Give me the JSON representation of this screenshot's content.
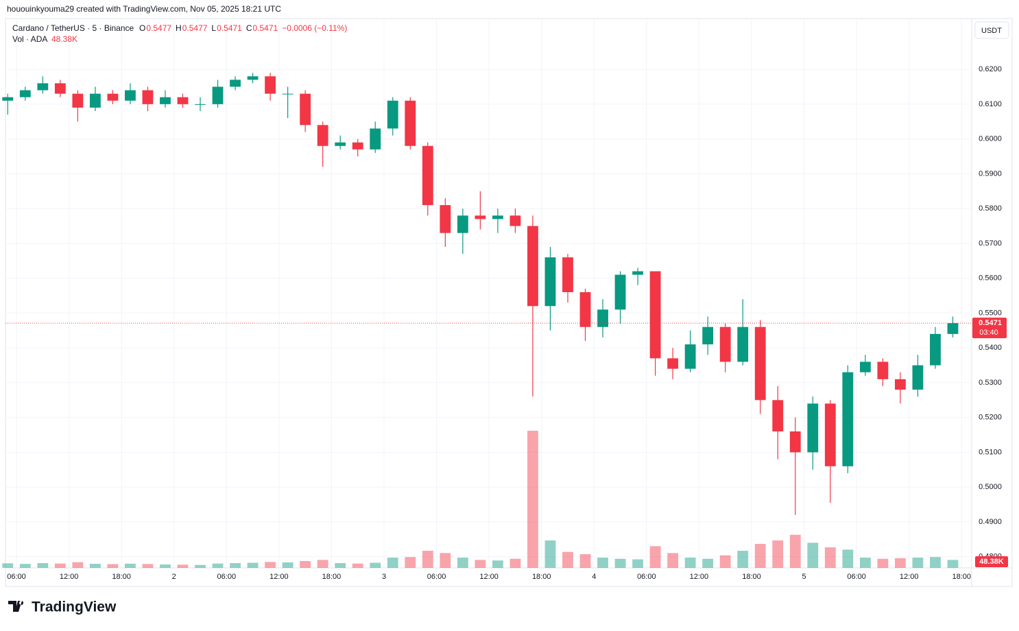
{
  "chart_data": {
    "type": "candlestick",
    "caption": "hououinkyouma29 created with TradingView.com, Nov 05, 2025 18:21 UTC",
    "title": "Cardano / TetherUS · 5 · Binance",
    "ohlc_legend": [
      {
        "label": "O",
        "value": 0.5477
      },
      {
        "label": "H",
        "value": 0.5477
      },
      {
        "label": "L",
        "value": 0.5471
      },
      {
        "label": "C",
        "value": 0.5471
      }
    ],
    "change": "−0.0006 (−0.11%)",
    "volume_title": "Vol · ADA",
    "volume_label": "48.38K",
    "currency": "USDT",
    "last_price": 0.5471,
    "countdown": "03:40",
    "brand": "TradingView",
    "up_color": "#089981",
    "down_color": "#f23645",
    "grid": true,
    "xlim": [
      4.9,
      115
    ],
    "xticks": [
      {
        "value": 6,
        "label": "06:00"
      },
      {
        "value": 12,
        "label": "12:00"
      },
      {
        "value": 18,
        "label": "18:00"
      },
      {
        "value": 24,
        "label": "2"
      },
      {
        "value": 30,
        "label": "06:00"
      },
      {
        "value": 36,
        "label": "12:00"
      },
      {
        "value": 42,
        "label": "18:00"
      },
      {
        "value": 48,
        "label": "3"
      },
      {
        "value": 54,
        "label": "06:00"
      },
      {
        "value": 60,
        "label": "12:00"
      },
      {
        "value": 66,
        "label": "18:00"
      },
      {
        "value": 72,
        "label": "4"
      },
      {
        "value": 78,
        "label": "06:00"
      },
      {
        "value": 84,
        "label": "12:00"
      },
      {
        "value": 90,
        "label": "18:00"
      },
      {
        "value": 96,
        "label": "5"
      },
      {
        "value": 102,
        "label": "06:00"
      },
      {
        "value": 108,
        "label": "12:00"
      },
      {
        "value": 114,
        "label": "18:00"
      }
    ],
    "ylim": [
      0.4768,
      0.6344
    ],
    "yticks": [
      {
        "value": 0.48,
        "label": "0.4800"
      },
      {
        "value": 0.49,
        "label": "0.4900"
      },
      {
        "value": 0.5,
        "label": "0.5000"
      },
      {
        "value": 0.51,
        "label": "0.5100"
      },
      {
        "value": 0.52,
        "label": "0.5200"
      },
      {
        "value": 0.53,
        "label": "0.5300"
      },
      {
        "value": 0.54,
        "label": "0.5400"
      },
      {
        "value": 0.55,
        "label": "0.5500"
      },
      {
        "value": 0.56,
        "label": "0.5600"
      },
      {
        "value": 0.57,
        "label": "0.5700"
      },
      {
        "value": 0.58,
        "label": "0.5800"
      },
      {
        "value": 0.59,
        "label": "0.5900"
      },
      {
        "value": 0.6,
        "label": "0.6000"
      },
      {
        "value": 0.61,
        "label": "0.6100"
      },
      {
        "value": 0.62,
        "label": "0.6200"
      }
    ],
    "x": [
      5,
      7,
      9,
      11,
      13,
      15,
      17,
      19,
      21,
      23,
      25,
      27,
      29,
      31,
      33,
      35,
      37,
      39,
      41,
      43,
      45,
      47,
      49,
      51,
      53,
      55,
      57,
      59,
      61,
      63,
      65,
      67,
      69,
      71,
      73,
      75,
      77,
      79,
      81,
      83,
      85,
      87,
      89,
      91,
      93,
      95,
      97,
      99,
      101,
      103,
      105,
      107,
      109,
      111,
      113
    ],
    "open": [
      0.611,
      0.612,
      0.614,
      0.616,
      0.613,
      0.609,
      0.613,
      0.611,
      0.614,
      0.61,
      0.612,
      0.61,
      0.61,
      0.615,
      0.617,
      0.618,
      0.613,
      0.613,
      0.604,
      0.598,
      0.599,
      0.597,
      0.603,
      0.611,
      0.598,
      0.581,
      0.573,
      0.578,
      0.577,
      0.578,
      0.575,
      0.552,
      0.566,
      0.556,
      0.546,
      0.551,
      0.561,
      0.562,
      0.537,
      0.534,
      0.541,
      0.546,
      0.536,
      0.546,
      0.525,
      0.516,
      0.51,
      0.524,
      0.506,
      0.533,
      0.536,
      0.531,
      0.528,
      0.535,
      0.544
    ],
    "high": [
      0.613,
      0.615,
      0.618,
      0.617,
      0.614,
      0.615,
      0.614,
      0.616,
      0.615,
      0.614,
      0.613,
      0.612,
      0.617,
      0.618,
      0.619,
      0.619,
      0.615,
      0.614,
      0.605,
      0.601,
      0.6,
      0.605,
      0.612,
      0.612,
      0.599,
      0.583,
      0.58,
      0.585,
      0.58,
      0.58,
      0.578,
      0.569,
      0.567,
      0.557,
      0.554,
      0.562,
      0.563,
      0.562,
      0.54,
      0.545,
      0.549,
      0.547,
      0.554,
      0.548,
      0.529,
      0.52,
      0.526,
      0.525,
      0.535,
      0.538,
      0.537,
      0.533,
      0.538,
      0.546,
      0.549
    ],
    "low": [
      0.607,
      0.611,
      0.613,
      0.612,
      0.605,
      0.608,
      0.61,
      0.61,
      0.608,
      0.609,
      0.609,
      0.608,
      0.609,
      0.614,
      0.616,
      0.611,
      0.606,
      0.602,
      0.592,
      0.597,
      0.595,
      0.596,
      0.601,
      0.597,
      0.578,
      0.569,
      0.567,
      0.574,
      0.573,
      0.573,
      0.526,
      0.545,
      0.553,
      0.542,
      0.543,
      0.547,
      0.558,
      0.532,
      0.531,
      0.533,
      0.538,
      0.533,
      0.535,
      0.521,
      0.508,
      0.492,
      0.505,
      0.4955,
      0.504,
      0.532,
      0.529,
      0.524,
      0.526,
      0.534,
      0.543
    ],
    "close": [
      0.612,
      0.614,
      0.616,
      0.613,
      0.609,
      0.613,
      0.611,
      0.614,
      0.61,
      0.612,
      0.61,
      0.61,
      0.615,
      0.617,
      0.618,
      0.613,
      0.613,
      0.604,
      0.598,
      0.599,
      0.597,
      0.603,
      0.611,
      0.598,
      0.581,
      0.573,
      0.578,
      0.577,
      0.578,
      0.575,
      0.552,
      0.566,
      0.556,
      0.546,
      0.551,
      0.561,
      0.562,
      0.537,
      0.534,
      0.541,
      0.546,
      0.536,
      0.546,
      0.525,
      0.516,
      0.51,
      0.524,
      0.506,
      0.533,
      0.536,
      0.531,
      0.528,
      0.535,
      0.544,
      0.5471
    ],
    "volume": [
      400,
      350,
      420,
      380,
      500,
      360,
      330,
      370,
      340,
      300,
      280,
      260,
      380,
      420,
      450,
      520,
      480,
      600,
      700,
      420,
      380,
      450,
      900,
      950,
      1500,
      1300,
      900,
      700,
      650,
      800,
      12000,
      2400,
      1400,
      1200,
      900,
      800,
      750,
      1900,
      1300,
      900,
      800,
      1100,
      1500,
      2100,
      2400,
      2900,
      2200,
      1800,
      1600,
      900,
      800,
      850,
      900,
      950,
      700
    ]
  }
}
